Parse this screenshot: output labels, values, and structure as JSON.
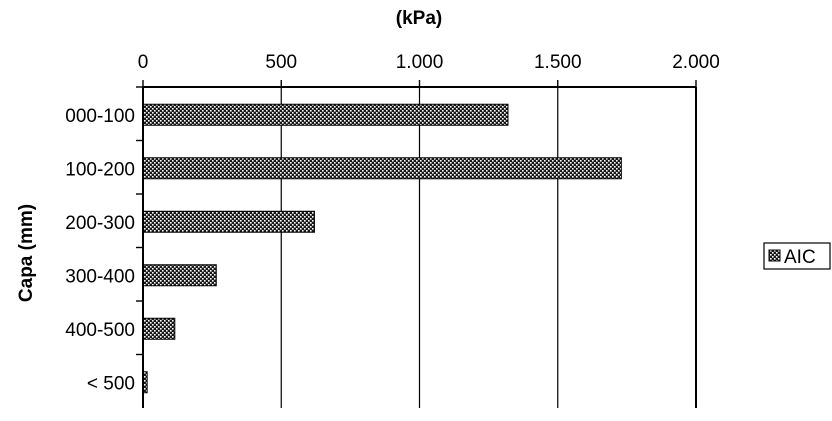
{
  "chart_data": {
    "type": "bar",
    "orientation": "horizontal",
    "xlabel": "(kPa)",
    "ylabel": "Capa (mm)",
    "categories": [
      "000-100",
      "100-200",
      "200-300",
      "300-400",
      "400-500",
      "< 500"
    ],
    "series": [
      {
        "name": "AIC",
        "values": [
          1320,
          1730,
          620,
          265,
          115,
          15
        ]
      }
    ],
    "xlim": [
      0,
      2000
    ],
    "x_ticks": [
      0,
      500,
      1000,
      1500,
      2000
    ],
    "x_tick_labels": [
      "0",
      "500",
      "1.000",
      "1.500",
      "2.000"
    ],
    "x_axis_position": "top",
    "grid": "vertical",
    "legend_position": "right",
    "bar_pattern": "dotted dark fill",
    "colors": {
      "bar_fill": "#1a1a1a",
      "bar_dots": "#ffffff",
      "axis": "#000000",
      "grid": "#000000"
    }
  }
}
